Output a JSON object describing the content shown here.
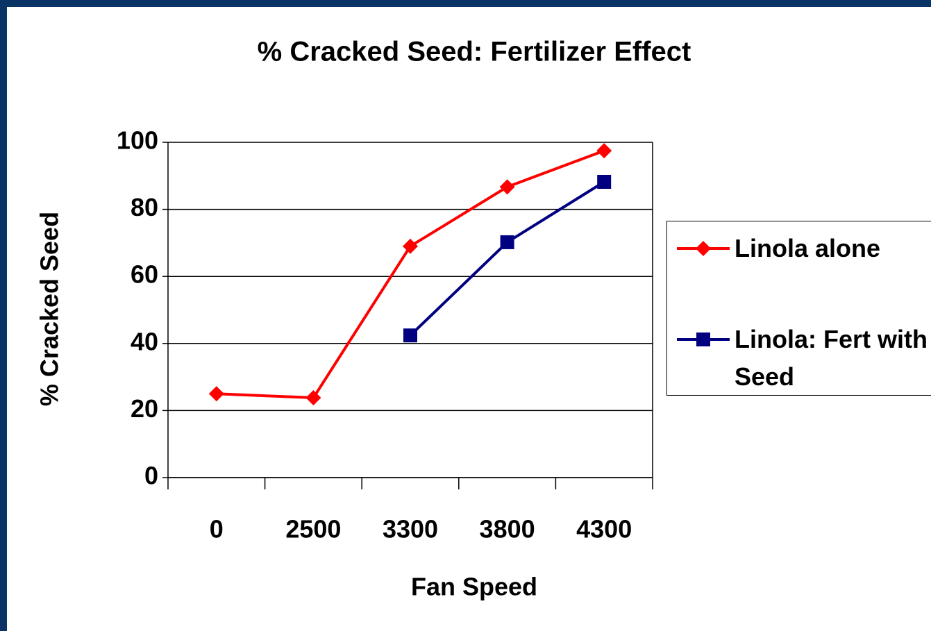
{
  "chart_data": {
    "type": "line",
    "title": "% Cracked Seed: Fertilizer Effect",
    "x_label": "Fan Speed",
    "y_label": "% Cracked Seed",
    "categories": [
      "0",
      "2500",
      "3300",
      "3800",
      "4300"
    ],
    "series": [
      {
        "name": "Linola alone",
        "color": "#ff0000",
        "marker": "diamond",
        "values": [
          25.0,
          23.8,
          69.0,
          86.7,
          97.5
        ]
      },
      {
        "name": "Linola: Fert with Seed",
        "color": "#000080",
        "marker": "square",
        "values": [
          null,
          null,
          42.4,
          70.2,
          88.2
        ]
      }
    ],
    "ylim": [
      0,
      100
    ],
    "yticks": [
      0,
      20,
      40,
      60,
      80,
      100
    ],
    "grid": true,
    "legend": "right"
  }
}
